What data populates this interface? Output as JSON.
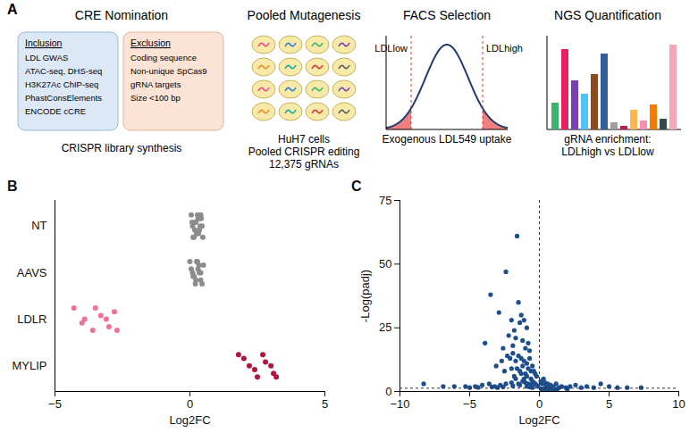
{
  "panel_labels": [
    "A",
    "B",
    "C"
  ],
  "panel_a": {
    "steps": [
      {
        "title": "CRE Nomination",
        "inclusion": {
          "title": "Inclusion",
          "items": [
            "LDL GWAS",
            "ATAC-seq, DHS-seq",
            "H3K27Ac ChIP-seq",
            "PhastConsElements",
            "ENCODE cCRE"
          ]
        },
        "exclusion": {
          "title": "Exclusion",
          "items": [
            "Coding sequence",
            "Non-unique SpCas9",
            "gRNA targets",
            "Size <100 bp"
          ]
        },
        "caption": [
          "CRISPR library synthesis"
        ]
      },
      {
        "title": "Pooled Mutagenesis",
        "caption": [
          "HuH7 cells",
          "Pooled CRISPR editing",
          "12,375 gRNAs"
        ]
      },
      {
        "title": "FACS Selection",
        "low_label": "LDLlow",
        "high_label": "LDLhigh",
        "caption": [
          "Exogenous LDL549 uptake"
        ]
      },
      {
        "title": "NGS Quantification",
        "caption": [
          "gRNA enrichment:",
          "LDLhigh vs LDLlow"
        ]
      }
    ]
  },
  "chart_data": [
    {
      "type": "strip",
      "x_label": "Log2FC",
      "categories": [
        "NT",
        "AAVS",
        "LDLR",
        "MYLIP"
      ],
      "colors": [
        "#8c8c8c",
        "#8c8c8c",
        "#f0709a",
        "#b3163c"
      ],
      "values": [
        [
          0.05,
          0.1,
          0.15,
          0.2,
          0.25,
          0.3,
          0.35,
          0.4,
          0.45,
          0.12,
          0.22,
          0.32,
          0.42,
          0.18,
          0.28,
          0.38,
          0.48,
          0.08,
          0.26,
          0.36
        ],
        [
          0.0,
          0.1,
          0.2,
          0.3,
          0.4,
          0.5,
          0.15,
          0.25,
          0.35,
          0.45,
          0.05,
          0.22,
          0.33,
          0.12,
          0.28,
          0.4
        ],
        [
          -4.3,
          -3.9,
          -3.6,
          -3.3,
          -3.0,
          -2.8,
          -4.0,
          -3.5,
          -3.1,
          -2.7
        ],
        [
          1.8,
          2.2,
          2.5,
          2.8,
          3.1,
          2.0,
          2.4,
          2.7,
          3.0,
          3.2
        ]
      ],
      "xlim": [
        -5,
        5
      ],
      "xticks": [
        -5,
        0,
        5
      ]
    },
    {
      "type": "scatter",
      "x_label": "Log2FC",
      "y_label": "-Log(padj)",
      "color": "#1f4e8c",
      "x": [
        -1.6,
        -2.4,
        -3.5,
        -2.9,
        -1.5,
        -1.3,
        -2.0,
        -1.1,
        -1.4,
        -0.9,
        -1.8,
        -3.9,
        -2.2,
        -1.7,
        -1.2,
        -0.8,
        -2.6,
        -1.9,
        -1.0,
        -0.7,
        -2.3,
        -2.1,
        -1.9,
        -1.7,
        -1.5,
        -1.3,
        -1.1,
        -0.9,
        -0.7,
        -0.5,
        -2.7,
        -3.1,
        -1.6,
        -1.2,
        -0.8,
        -0.6,
        -0.4,
        -2.0,
        -1.4,
        -1.0,
        -0.3,
        -2.5,
        -1.8,
        -0.2,
        -0.9,
        -1.3,
        -0.6,
        -1.7,
        -1.1,
        -0.5,
        -0.4,
        -0.3,
        -0.2,
        -0.1,
        -0.6,
        -0.8,
        -1.0,
        -1.2,
        -1.5,
        -2.0,
        -2.4,
        -2.8,
        -3.2,
        -3.6,
        -4.1,
        -4.6,
        -5.3,
        -6.1,
        -6.9,
        -8.3,
        -0.5,
        -0.7,
        -0.9,
        -1.4,
        -1.9,
        -2.6,
        -3.0,
        -3.4,
        -4.4,
        -5.0,
        0.1,
        0.2,
        0.3,
        0.4,
        0.5,
        0.6,
        0.7,
        0.8,
        1.0,
        1.2,
        1.4,
        1.6,
        1.9,
        2.2,
        2.6,
        3.0,
        3.4,
        3.9,
        4.4,
        5.0,
        5.6,
        6.3,
        7.3,
        0.15,
        0.35,
        0.55,
        0.9,
        1.3,
        2.0,
        0.25,
        0.45,
        0.75,
        1.1
      ],
      "values": [
        61,
        47,
        38,
        31,
        35,
        30,
        28,
        28,
        27,
        25,
        24,
        19,
        22,
        21,
        20,
        19,
        17,
        18,
        17,
        16,
        14,
        13,
        15,
        12,
        14,
        13,
        12,
        11,
        13,
        10,
        12,
        10,
        9,
        10,
        9,
        8,
        8,
        9,
        8,
        7,
        7,
        8,
        6,
        6,
        6,
        7,
        5,
        5,
        5,
        4,
        3.5,
        3,
        2.5,
        2,
        2.5,
        3,
        3.5,
        4,
        3,
        3.5,
        3,
        2.5,
        2,
        3,
        2.5,
        2,
        2,
        2,
        2,
        3,
        1.5,
        1.8,
        2,
        2.5,
        2.2,
        1.8,
        1.5,
        1.8,
        1.6,
        1.5,
        4,
        3,
        5,
        3.5,
        2.5,
        3,
        2,
        2.5,
        2,
        3,
        1.5,
        2,
        1.5,
        2,
        2.5,
        1.5,
        2,
        1.5,
        3,
        2,
        1.5,
        1.5,
        1.5,
        1,
        1.2,
        0.8,
        0.9,
        1,
        0.8,
        0.5,
        0.6,
        0.4,
        0.5
      ],
      "threshold_x": 0,
      "threshold_y": 1.3,
      "xlim": [
        -10,
        10
      ],
      "xticks": [
        -10,
        -5,
        0,
        5,
        10
      ],
      "ylim": [
        0,
        75
      ],
      "yticks": [
        0,
        25,
        50,
        75
      ]
    }
  ]
}
